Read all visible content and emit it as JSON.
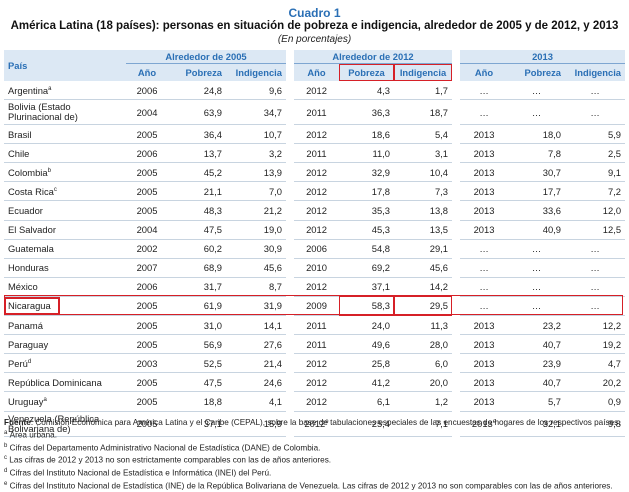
{
  "title": "Cuadro 1",
  "subtitle": "América Latina (18 países): personas en situación de pobreza e indigencia, alrededor de 2005 y de 2012, y 2013",
  "unit": "(En porcentajes)",
  "headers": {
    "country": "País",
    "group1": "Alrededor de 2005",
    "group2": "Alrededor de 2012",
    "group3": "2013",
    "year": "Año",
    "poverty": "Pobreza",
    "indigence": "Indigencia"
  },
  "rows": [
    {
      "country": "Argentina",
      "sup": "a",
      "y1": "2006",
      "p1": "24,8",
      "i1": "9,6",
      "y2": "2012",
      "y2sup": "",
      "p2": "4,3",
      "i2": "1,7",
      "y3": "…",
      "y3sup": "",
      "p3": "…",
      "i3": "…"
    },
    {
      "country": "Bolivia (Estado Plurinacional de)",
      "sup": "",
      "y1": "2004",
      "p1": "63,9",
      "i1": "34,7",
      "y2": "2011",
      "y2sup": "",
      "p2": "36,3",
      "i2": "18,7",
      "y3": "…",
      "y3sup": "",
      "p3": "…",
      "i3": "…"
    },
    {
      "country": "Brasil",
      "sup": "",
      "y1": "2005",
      "p1": "36,4",
      "i1": "10,7",
      "y2": "2012",
      "y2sup": "",
      "p2": "18,6",
      "i2": "5,4",
      "y3": "2013",
      "y3sup": "",
      "p3": "18,0",
      "i3": "5,9"
    },
    {
      "country": "Chile",
      "sup": "",
      "y1": "2006",
      "p1": "13,7",
      "i1": "3,2",
      "y2": "2011",
      "y2sup": "",
      "p2": "11,0",
      "i2": "3,1",
      "y3": "2013",
      "y3sup": "",
      "p3": "7,8",
      "i3": "2,5"
    },
    {
      "country": "Colombia",
      "sup": "b",
      "y1": "2005",
      "p1": "45,2",
      "i1": "13,9",
      "y2": "2012",
      "y2sup": "",
      "p2": "32,9",
      "i2": "10,4",
      "y3": "2013",
      "y3sup": "",
      "p3": "30,7",
      "i3": "9,1"
    },
    {
      "country": "Costa Rica",
      "sup": "c",
      "y1": "2005",
      "p1": "21,1",
      "i1": "7,0",
      "y2": "2012",
      "y2sup": "",
      "p2": "17,8",
      "i2": "7,3",
      "y3": "2013",
      "y3sup": "",
      "p3": "17,7",
      "i3": "7,2"
    },
    {
      "country": "Ecuador",
      "sup": "",
      "y1": "2005",
      "p1": "48,3",
      "i1": "21,2",
      "y2": "2012",
      "y2sup": "",
      "p2": "35,3",
      "i2": "13,8",
      "y3": "2013",
      "y3sup": "",
      "p3": "33,6",
      "i3": "12,0"
    },
    {
      "country": "El Salvador",
      "sup": "",
      "y1": "2004",
      "p1": "47,5",
      "i1": "19,0",
      "y2": "2012",
      "y2sup": "",
      "p2": "45,3",
      "i2": "13,5",
      "y3": "2013",
      "y3sup": "",
      "p3": "40,9",
      "i3": "12,5"
    },
    {
      "country": "Guatemala",
      "sup": "",
      "y1": "2002",
      "p1": "60,2",
      "i1": "30,9",
      "y2": "2006",
      "y2sup": "",
      "p2": "54,8",
      "i2": "29,1",
      "y3": "…",
      "y3sup": "",
      "p3": "…",
      "i3": "…"
    },
    {
      "country": "Honduras",
      "sup": "",
      "y1": "2007",
      "p1": "68,9",
      "i1": "45,6",
      "y2": "2010",
      "y2sup": "",
      "p2": "69,2",
      "i2": "45,6",
      "y3": "…",
      "y3sup": "",
      "p3": "…",
      "i3": "…"
    },
    {
      "country": "México",
      "sup": "",
      "y1": "2006",
      "p1": "31,7",
      "i1": "8,7",
      "y2": "2012",
      "y2sup": "",
      "p2": "37,1",
      "i2": "14,2",
      "y3": "…",
      "y3sup": "",
      "p3": "…",
      "i3": "…"
    },
    {
      "country": "Nicaragua",
      "sup": "",
      "y1": "2005",
      "p1": "61,9",
      "i1": "31,9",
      "y2": "2009",
      "y2sup": "",
      "p2": "58,3",
      "i2": "29,5",
      "y3": "…",
      "y3sup": "",
      "p3": "…",
      "i3": "…"
    },
    {
      "country": "Panamá",
      "sup": "",
      "y1": "2005",
      "p1": "31,0",
      "i1": "14,1",
      "y2": "2011",
      "y2sup": "",
      "p2": "24,0",
      "i2": "11,3",
      "y3": "2013",
      "y3sup": "",
      "p3": "23,2",
      "i3": "12,2"
    },
    {
      "country": "Paraguay",
      "sup": "",
      "y1": "2005",
      "p1": "56,9",
      "i1": "27,6",
      "y2": "2011",
      "y2sup": "",
      "p2": "49,6",
      "i2": "28,0",
      "y3": "2013",
      "y3sup": "",
      "p3": "40,7",
      "i3": "19,2"
    },
    {
      "country": "Perú",
      "sup": "d",
      "y1": "2003",
      "p1": "52,5",
      "i1": "21,4",
      "y2": "2012",
      "y2sup": "",
      "p2": "25,8",
      "i2": "6,0",
      "y3": "2013",
      "y3sup": "",
      "p3": "23,9",
      "i3": "4,7"
    },
    {
      "country": "República Dominicana",
      "sup": "",
      "y1": "2005",
      "p1": "47,5",
      "i1": "24,6",
      "y2": "2012",
      "y2sup": "",
      "p2": "41,2",
      "i2": "20,0",
      "y3": "2013",
      "y3sup": "",
      "p3": "40,7",
      "i3": "20,2"
    },
    {
      "country": "Uruguay",
      "sup": "a",
      "y1": "2005",
      "p1": "18,8",
      "i1": "4,1",
      "y2": "2012",
      "y2sup": "",
      "p2": "6,1",
      "i2": "1,2",
      "y3": "2013",
      "y3sup": "",
      "p3": "5,7",
      "i3": "0,9"
    },
    {
      "country": "Venezuela (República Bolivariana de)",
      "sup": "",
      "y1": "2005",
      "p1": "37,1",
      "i1": "15,9",
      "y2": "2012",
      "y2sup": "e",
      "p2": "25,4",
      "i2": "7,1",
      "y3": "2013",
      "y3sup": "e",
      "p3": "32,1",
      "i3": "9,8"
    }
  ],
  "notes": {
    "source_label": "Fuente",
    "source_text": ":  Comisión Económica para América Latina y el Caribe (CEPAL), sobre la base de tabulaciones especiales de las encuestas de hogares de los respectivos países.",
    "items": [
      {
        "sup": "a",
        "text": "Área urbana."
      },
      {
        "sup": "b",
        "text": "Cifras del Departamento Administrativo Nacional de Estadística (DANE) de Colombia."
      },
      {
        "sup": "c",
        "text": "Las cifras de 2012 y 2013 no son estrictamente comparables con las de años anteriores."
      },
      {
        "sup": "d",
        "text": "Cifras del Instituto Nacional de Estadística e Informática (INEI) del Perú."
      },
      {
        "sup": "e",
        "text": "Cifras del Instituto Nacional de Estadística (INE) de la República Bolivariana de Venezuela. Las cifras de 2012 y 2013 no son comparables con las de años anteriores."
      }
    ]
  },
  "colors": {
    "header_bg": "#dce8f4",
    "header_text": "#2a6fb5",
    "highlight": "#d62027"
  }
}
